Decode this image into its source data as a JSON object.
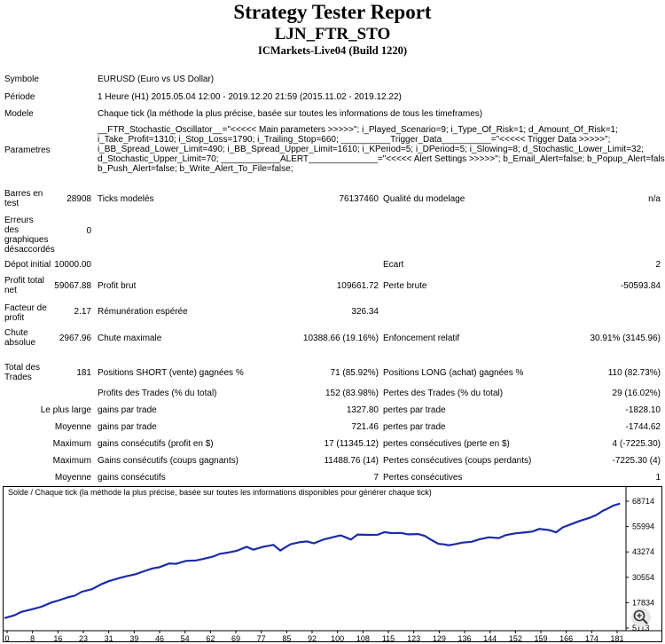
{
  "header": {
    "title": "Strategy Tester Report",
    "ea": "LJN_FTR_STO",
    "server": "ICMarkets-Live04 (Build 1220)"
  },
  "info": {
    "symbol_label": "Symbole",
    "symbol_value": "EURUSD (Euro vs US Dollar)",
    "period_label": "Période",
    "period_value": "1 Heure (H1) 2015.05.04 12:00 - 2019.12.20 21:59 (2015.11.02 - 2019.12.22)",
    "model_label": "Modele",
    "model_value": "Chaque tick (la méthode la plus précise, basée sur toutes les informations de tous les timeframes)",
    "params_label": "Parametres",
    "params_lines": [
      "__FTR_Stochastic_Oscillator__=\"<<<<< Main parameters >>>>>\"; i_Played_Scenario=9; i_Type_Of_Risk=1; d_Amount_Of_Risk=1;",
      "i_Take_Profit=1310; i_Stop_Loss=1790; i_Trailing_Stop=660; __________Trigger_Data__________=\"<<<<< Trigger Data >>>>>\";",
      "i_BB_Spread_Lower_Limit=490; i_BB_Spread_Upper_Limit=1610; i_KPeriod=5; i_DPeriod=5; i_Slowing=8; d_Stochastic_Lower_Limit=32;",
      "d_Stochastic_Upper_Limit=70; ____________ALERT______________=\"<<<<< Alert Settings >>>>>\"; b_Email_Alert=false; b_Popup_Alert=false;",
      "b_Push_Alert=false; b_Write_Alert_To_File=false;"
    ]
  },
  "stats": {
    "bars_label": "Barres en test",
    "bars_value": "28908",
    "ticks_label": "Ticks modelés",
    "ticks_value": "76137460",
    "quality_label": "Qualité du modelage",
    "quality_value": "n/a",
    "errors_label": "Erreurs des graphiques désaccordés",
    "errors_value": "0",
    "deposit_label": "Dépot initial",
    "deposit_value": "10000.00",
    "spread_label": "Ecart",
    "spread_value": "2",
    "net_label": "Profit total net",
    "net_value": "59067.88",
    "gross_profit_label": "Profit brut",
    "gross_profit_value": "109661.72",
    "gross_loss_label": "Perte brute",
    "gross_loss_value": "-50593.84",
    "pf_label": "Facteur de profit",
    "pf_value": "2.17",
    "expected_label": "Rémunération espérée",
    "expected_value": "326.34",
    "abs_dd_label": "Chute absolue",
    "abs_dd_value": "2967.96",
    "max_dd_label": "Chute maximale",
    "max_dd_value": "10388.66 (19.16%)",
    "rel_dd_label": "Enfoncement relatif",
    "rel_dd_value": "30.91% (3145.96)",
    "total_trades_label": "Total des Trades",
    "total_trades_value": "181",
    "short_label": "Positions SHORT (vente) gagnées %",
    "short_value": "71 (85.92%)",
    "long_label": "Positions LONG (achat) gagnées %",
    "long_value": "110 (82.73%)",
    "profit_trades_label": "Profits des Trades (% du total)",
    "profit_trades_value": "152 (83.98%)",
    "loss_trades_label": "Pertes des Trades (% du total)",
    "loss_trades_value": "29 (16.02%)",
    "largest_label": "Le plus large",
    "largest_profit_label": "gains par trade",
    "largest_profit_value": "1327.80",
    "largest_loss_label": "pertes par trade",
    "largest_loss_value": "-1828.10",
    "average_label": "Moyenne",
    "average_profit_label": "gains par trade",
    "average_profit_value": "721.46",
    "average_loss_label": "pertes par trade",
    "average_loss_value": "-1744.62",
    "maximum_label": "Maximum",
    "max_cons_wins_label": "gains consécutifs (profit en $)",
    "max_cons_wins_value": "17 (11345.12)",
    "max_cons_losses_label": "pertes consécutives (perte en $)",
    "max_cons_losses_value": "4 (-7225.30)",
    "maximal_label": "Maximum",
    "maximal_wins_label": "Gains consécutifs (coups gagnants)",
    "maximal_wins_value": "11488.76 (14)",
    "maximal_losses_label": "Pertes consécutives (coups perdants)",
    "maximal_losses_value": "-7225.30 (4)",
    "avg_cons_label": "Moyenne",
    "avg_cons_wins_label": "gains consécutifs",
    "avg_cons_wins_value": "7",
    "avg_cons_losses_label": "Pertes consécutives",
    "avg_cons_losses_value": "1"
  },
  "chart_data": {
    "type": "line",
    "title": "Solde / Chaque tick (la méthode la plus précise, basée sur toutes les informations disponibles pour générer chaque tick)",
    "x_ticks": [
      "0",
      "8",
      "16",
      "23",
      "31",
      "39",
      "46",
      "54",
      "62",
      "69",
      "77",
      "85",
      "92",
      "100",
      "108",
      "115",
      "123",
      "129",
      "136",
      "144",
      "152",
      "159",
      "166",
      "174",
      "181"
    ],
    "y_ticks": [
      "68714",
      "55994",
      "43274",
      "30554",
      "17834",
      "5113"
    ],
    "ylim": [
      5113,
      68714
    ],
    "xlim": [
      0,
      184
    ],
    "line_color": "#1c2ba8",
    "series": [
      {
        "x": [
          0,
          3,
          5,
          8,
          11,
          14,
          16,
          19,
          21,
          23,
          26,
          29,
          31,
          34,
          36,
          39,
          41,
          44,
          46,
          49,
          51,
          54,
          57,
          59,
          62,
          64,
          67,
          69,
          72,
          74,
          77,
          80,
          82,
          85,
          88,
          90,
          92,
          95,
          97,
          100,
          103,
          105,
          108,
          111,
          113,
          115,
          118,
          120,
          123,
          125,
          127,
          129,
          131,
          132,
          134,
          136,
          139,
          141,
          144,
          147,
          149,
          152,
          155,
          157,
          159,
          162,
          164,
          166,
          169,
          171,
          174,
          176,
          178,
          179,
          181,
          183
        ],
        "y": [
          10100,
          11500,
          13200,
          14400,
          15800,
          17900,
          18900,
          20600,
          21400,
          23300,
          24600,
          27200,
          28600,
          30100,
          31000,
          32100,
          33300,
          35000,
          35600,
          37500,
          37300,
          38800,
          39000,
          39700,
          40900,
          42300,
          43100,
          43800,
          45800,
          44400,
          45900,
          46800,
          44000,
          47100,
          48200,
          48500,
          47600,
          49600,
          50400,
          51600,
          49500,
          52000,
          51800,
          51900,
          53200,
          52700,
          52800,
          52100,
          52200,
          51300,
          49200,
          47300,
          47000,
          46600,
          47200,
          47900,
          48400,
          49500,
          50600,
          50200,
          51700,
          52600,
          53100,
          53500,
          54800,
          54200,
          53100,
          55600,
          57500,
          58800,
          60400,
          61800,
          64000,
          64700,
          66500,
          67500
        ]
      }
    ]
  },
  "controls": {
    "zoom_glyph": "⊕"
  }
}
